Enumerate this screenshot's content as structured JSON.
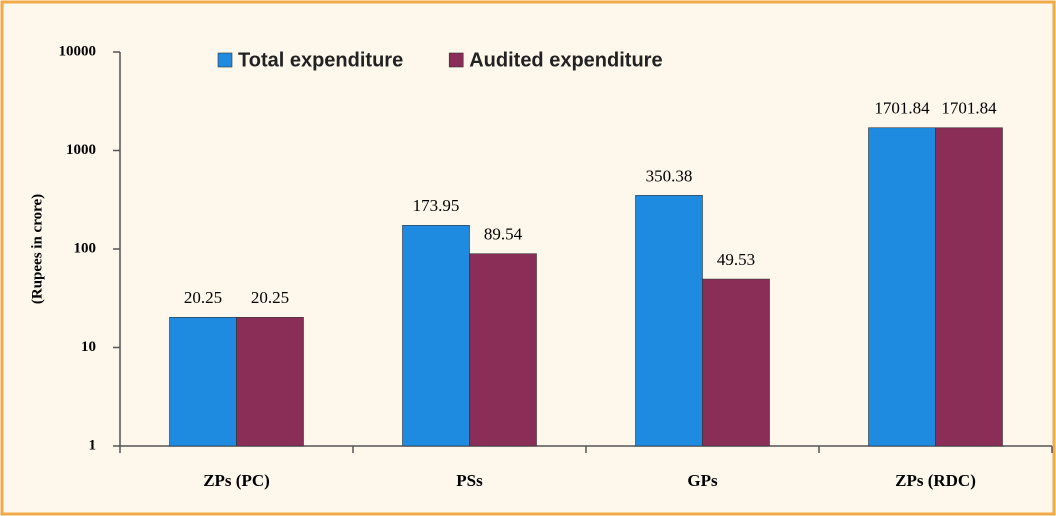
{
  "chart_data": {
    "type": "bar",
    "categories": [
      "ZPs (PC)",
      "PSs",
      "GPs",
      "ZPs (RDC)"
    ],
    "series": [
      {
        "name": "Total expenditure",
        "color": "#1e8be0",
        "values": [
          20.25,
          173.95,
          350.38,
          1701.84
        ]
      },
      {
        "name": "Audited expenditure",
        "color": "#8a2e57",
        "values": [
          20.25,
          89.54,
          49.53,
          1701.84
        ]
      }
    ],
    "ylabel": "(Rupees in crore)",
    "ylim": [
      1,
      10000
    ],
    "yticks": [
      1,
      10,
      100,
      1000,
      10000
    ],
    "log_y": true,
    "legend": "top",
    "data_labels": true
  }
}
